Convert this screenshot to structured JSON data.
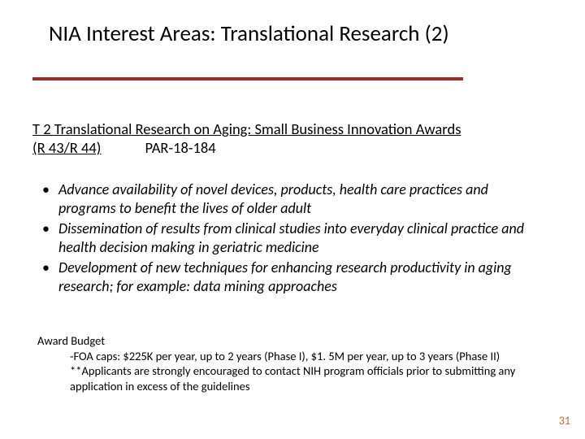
{
  "colors": {
    "background": "#ffffff",
    "text": "#000000",
    "rule": "#9e2b25",
    "page_number": "#b86b3a"
  },
  "typography": {
    "title_fontsize": 27,
    "subtitle_fontsize": 18.5,
    "bullet_fontsize": 18,
    "budget_fontsize": 14.5,
    "pagenum_fontsize": 14,
    "font_family": "Calibri"
  },
  "title": "NIA Interest Areas: Translational Research (2)",
  "subtitle": {
    "link_line1": "T 2 Translational Research on Aging: Small Business Innovation Awards",
    "link_line2": "(R 43/R 44)",
    "par": "PAR-18-184"
  },
  "bullets": [
    "Advance availability of novel devices, products, health care practices and programs to benefit the lives of older adult",
    "Dissemination of results from clinical studies into everyday clinical practice and health decision making in geriatric medicine",
    "Development of new techniques for enhancing research productivity in aging research; for example: data mining approaches"
  ],
  "budget": {
    "heading": "Award Budget",
    "line1": "-FOA caps: $225K per year, up to 2 years (Phase I), $1. 5M per year, up to 3 years (Phase II)",
    "line2": "**Applicants are strongly encouraged to contact NIH program officials prior to submitting any application in excess of the guidelines"
  },
  "page_number": "31"
}
